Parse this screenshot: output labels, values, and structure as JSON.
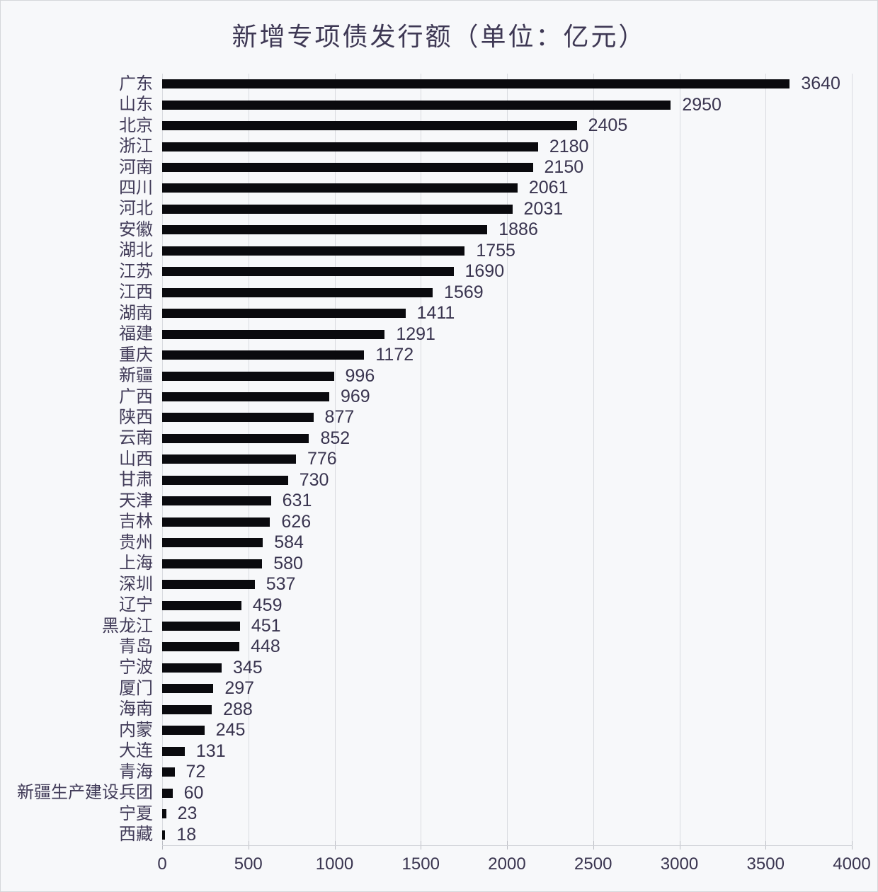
{
  "chart_data": {
    "type": "bar",
    "orientation": "horizontal",
    "title": "新增专项债发行额（单位：亿元）",
    "categories": [
      "广东",
      "山东",
      "北京",
      "浙江",
      "河南",
      "四川",
      "河北",
      "安徽",
      "湖北",
      "江苏",
      "江西",
      "湖南",
      "福建",
      "重庆",
      "新疆",
      "广西",
      "陕西",
      "云南",
      "山西",
      "甘肃",
      "天津",
      "吉林",
      "贵州",
      "上海",
      "深圳",
      "辽宁",
      "黑龙江",
      "青岛",
      "宁波",
      "厦门",
      "海南",
      "内蒙",
      "大连",
      "青海",
      "新疆生产建设兵团",
      "宁夏",
      "西藏"
    ],
    "values": [
      3640,
      2950,
      2405,
      2180,
      2150,
      2061,
      2031,
      1886,
      1755,
      1690,
      1569,
      1411,
      1291,
      1172,
      996,
      969,
      877,
      852,
      776,
      730,
      631,
      626,
      584,
      580,
      537,
      459,
      451,
      448,
      345,
      297,
      288,
      245,
      131,
      72,
      60,
      23,
      18
    ],
    "value_labels_shown": true,
    "xlabel": "",
    "ylabel": "",
    "xlim": [
      0,
      4000
    ],
    "xticks": [
      0,
      500,
      1000,
      1500,
      2000,
      2500,
      3000,
      3500,
      4000
    ],
    "grid": "vertical",
    "legend": "none",
    "colors": {
      "bar": "#0a0a0e",
      "category_label": "#423c59",
      "value_label": "#39344f",
      "tick_label": "#39344f",
      "title": "#3e3854",
      "gridline": "#d9dbe0",
      "background": "#f7f8fa"
    }
  }
}
